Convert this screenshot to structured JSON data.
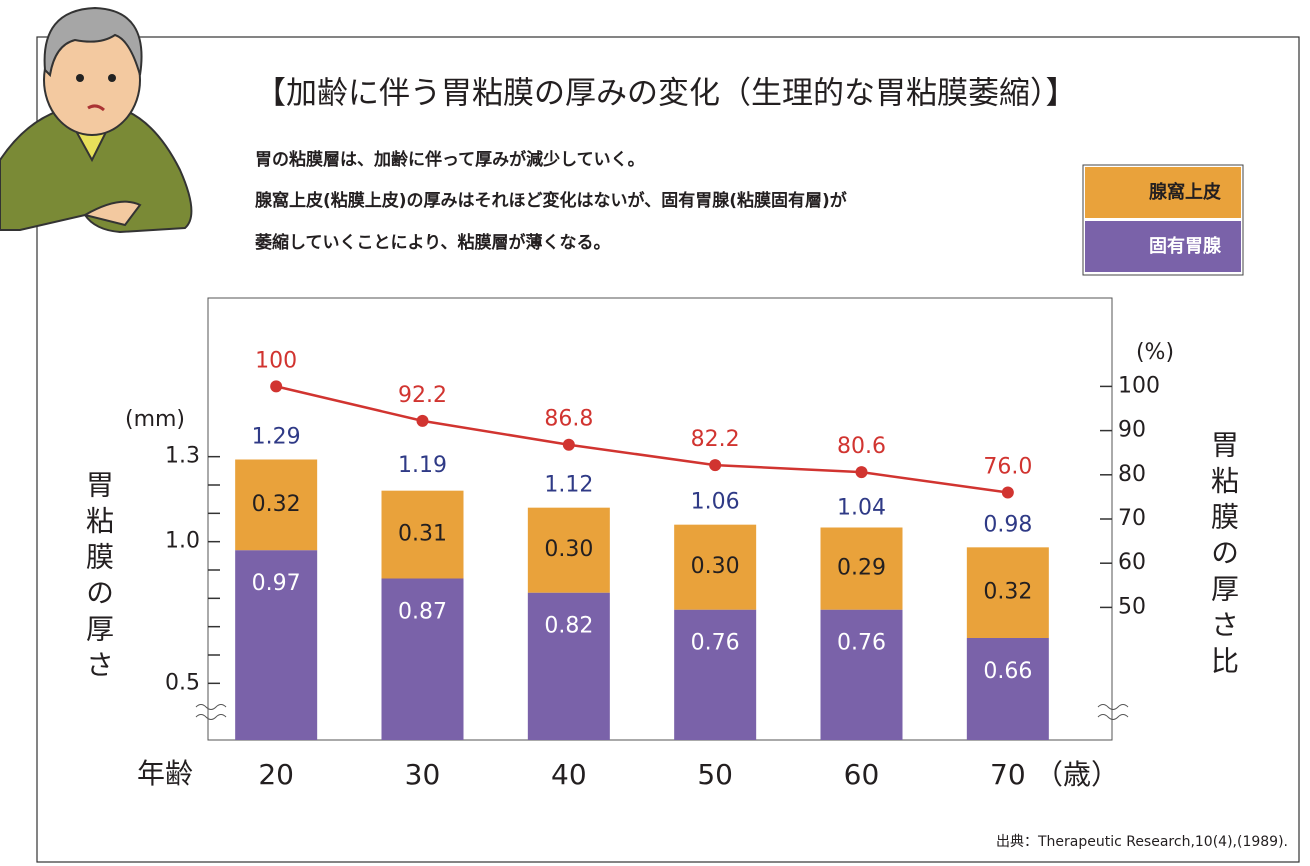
{
  "chart_data": {
    "type": "bar",
    "title": "【加齢に伴う胃粘膜の厚みの変化（生理的な胃粘膜萎縮）】",
    "description": [
      "胃の粘膜層は、加齢に伴って厚みが減少していく。",
      "腺窩上皮(粘膜上皮)の厚みはそれほど変化はないが、固有胃腺(粘膜固有層)が",
      "萎縮していくことにより、粘膜層が薄くなる。"
    ],
    "categories": [
      "20",
      "30",
      "40",
      "50",
      "60",
      "70"
    ],
    "x_label": "年齢",
    "x_unit": "（歳）",
    "y_label": "胃粘膜の厚さ",
    "y_unit": "(mm)",
    "y2_label": "胃粘膜の厚さ比",
    "y2_unit": "(%)",
    "ylim": [
      0.3,
      1.86
    ],
    "yticks": [
      {
        "value": 0.5,
        "label": "0.5"
      },
      {
        "value": 1,
        "label": "1.0"
      },
      {
        "value": 1.3,
        "label": "1.3"
      }
    ],
    "yminor_ticks": [
      0.6,
      0.7,
      0.8,
      0.9,
      1.1,
      1.2
    ],
    "y2lim": [
      20,
      120
    ],
    "y2ticks": [
      50,
      60,
      70,
      80,
      90,
      100
    ],
    "series": [
      {
        "name": "腺窩上皮",
        "color": "#e9a23b",
        "values": [
          0.32,
          0.31,
          0.3,
          0.3,
          0.29,
          0.32
        ],
        "value_labels": [
          "0.32",
          "0.31",
          "0.30",
          "0.30",
          "0.29",
          "0.32"
        ]
      },
      {
        "name": "固有胃腺",
        "color": "#7a62a9",
        "values": [
          0.97,
          0.87,
          0.82,
          0.76,
          0.76,
          0.66
        ],
        "value_labels": [
          "0.97",
          "0.87",
          "0.82",
          "0.76",
          "0.76",
          "0.66"
        ]
      },
      {
        "type": "line",
        "axis": "y2",
        "color": "#d13430",
        "values": [
          100,
          92.2,
          86.8,
          82.2,
          80.6,
          76
        ],
        "value_labels": [
          "100",
          "92.2",
          "86.8",
          "82.2",
          "80.6",
          "76.0"
        ]
      }
    ],
    "totals": [
      1.29,
      1.19,
      1.12,
      1.06,
      1.04,
      0.98
    ],
    "totals_color": "#2f3a86",
    "source": "出典：Therapeutic Research,10(4),(1989)."
  }
}
